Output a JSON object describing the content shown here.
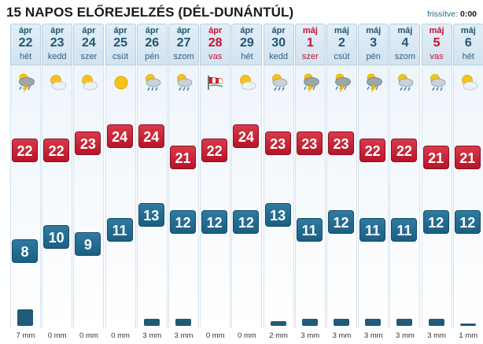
{
  "header": {
    "title": "15 NAPOS ELŐREJELZÉS (DÉL-DUNÁNTÚL)",
    "updated_label": "frissítve:",
    "updated_time": "0:00"
  },
  "days": [
    {
      "month": "ápr",
      "day": "22",
      "weekday": "hét",
      "red": false,
      "icon": "thunderstorm-icon",
      "max": "22",
      "min": "8",
      "precip": "7 mm",
      "precip_mm": 7
    },
    {
      "month": "ápr",
      "day": "23",
      "weekday": "kedd",
      "red": false,
      "icon": "partly-cloudy-icon",
      "max": "22",
      "min": "10",
      "precip": "0 mm",
      "precip_mm": 0
    },
    {
      "month": "ápr",
      "day": "24",
      "weekday": "szer",
      "red": false,
      "icon": "partly-cloudy-icon",
      "max": "23",
      "min": "9",
      "precip": "0 mm",
      "precip_mm": 0
    },
    {
      "month": "ápr",
      "day": "25",
      "weekday": "csüt",
      "red": false,
      "icon": "sunny-icon",
      "max": "24",
      "min": "11",
      "precip": "0 mm",
      "precip_mm": 0
    },
    {
      "month": "ápr",
      "day": "26",
      "weekday": "pén",
      "red": false,
      "icon": "sun-rain-icon",
      "max": "24",
      "min": "13",
      "precip": "3 mm",
      "precip_mm": 3
    },
    {
      "month": "ápr",
      "day": "27",
      "weekday": "szom",
      "red": false,
      "icon": "sun-rain-icon",
      "max": "21",
      "min": "12",
      "precip": "3 mm",
      "precip_mm": 3
    },
    {
      "month": "ápr",
      "day": "28",
      "weekday": "vas",
      "red": true,
      "icon": "windy-icon",
      "max": "22",
      "min": "12",
      "precip": "0 mm",
      "precip_mm": 0
    },
    {
      "month": "ápr",
      "day": "29",
      "weekday": "hét",
      "red": false,
      "icon": "partly-cloudy-icon",
      "max": "24",
      "min": "12",
      "precip": "0 mm",
      "precip_mm": 0
    },
    {
      "month": "ápr",
      "day": "30",
      "weekday": "kedd",
      "red": false,
      "icon": "sun-rain-icon",
      "max": "23",
      "min": "13",
      "precip": "2 mm",
      "precip_mm": 2
    },
    {
      "month": "máj",
      "day": "1",
      "weekday": "szer",
      "red": true,
      "icon": "thunderstorm-icon",
      "max": "23",
      "min": "11",
      "precip": "3 mm",
      "precip_mm": 3
    },
    {
      "month": "máj",
      "day": "2",
      "weekday": "csüt",
      "red": false,
      "icon": "thunderstorm-icon",
      "max": "23",
      "min": "12",
      "precip": "3 mm",
      "precip_mm": 3
    },
    {
      "month": "máj",
      "day": "3",
      "weekday": "pén",
      "red": false,
      "icon": "thunderstorm-icon",
      "max": "22",
      "min": "11",
      "precip": "3 mm",
      "precip_mm": 3
    },
    {
      "month": "máj",
      "day": "4",
      "weekday": "szom",
      "red": false,
      "icon": "sun-rain-icon",
      "max": "22",
      "min": "11",
      "precip": "3 mm",
      "precip_mm": 3
    },
    {
      "month": "máj",
      "day": "5",
      "weekday": "vas",
      "red": true,
      "icon": "sun-rain-icon",
      "max": "21",
      "min": "12",
      "precip": "3 mm",
      "precip_mm": 3
    },
    {
      "month": "máj",
      "day": "6",
      "weekday": "hét",
      "red": false,
      "icon": "partly-cloudy-icon",
      "max": "21",
      "min": "12",
      "precip": "1 mm",
      "precip_mm": 1
    }
  ]
}
